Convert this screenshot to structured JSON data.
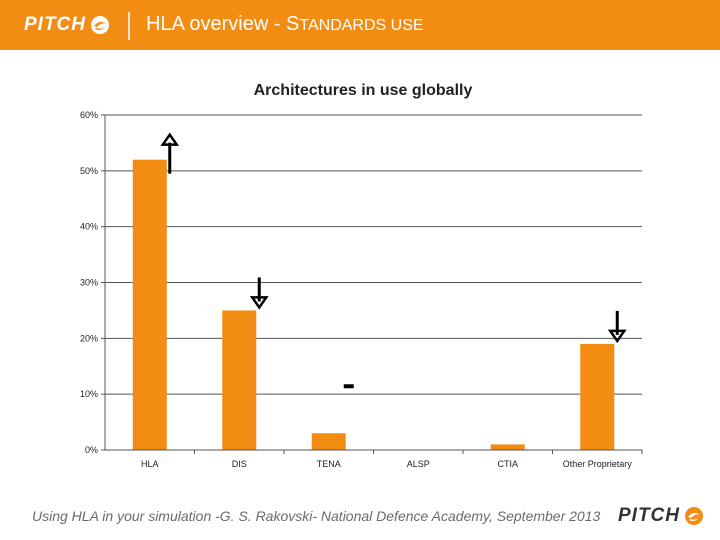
{
  "header": {
    "logo_text": "PITCH",
    "title_main": "HLA overview - S",
    "title_small": "TANDARDS USE",
    "accent_color": "#f28c12"
  },
  "chart_data": {
    "type": "bar",
    "title": "Architectures in use globally",
    "categories": [
      "HLA",
      "DIS",
      "TENA",
      "ALSP",
      "CTIA",
      "Other Proprietary"
    ],
    "values": [
      52,
      25,
      3,
      0,
      1,
      19
    ],
    "ylim": [
      0,
      60
    ],
    "yticks": [
      0,
      10,
      20,
      30,
      40,
      50,
      60
    ],
    "ytick_labels": [
      "0%",
      "10%",
      "20%",
      "30%",
      "40%",
      "50%",
      "60%"
    ],
    "grid": true,
    "bar_color": "#f28c12",
    "trend_markers": [
      {
        "category": "HLA",
        "direction": "up"
      },
      {
        "category": "DIS",
        "direction": "down"
      },
      {
        "category": "TENA",
        "direction": "flat"
      },
      {
        "category": "Other Proprietary",
        "direction": "down"
      }
    ]
  },
  "footer": {
    "text": "Using HLA in your simulation -G. S. Rakovski- National Defence Academy, September 2013",
    "logo_text": "PITCH"
  }
}
